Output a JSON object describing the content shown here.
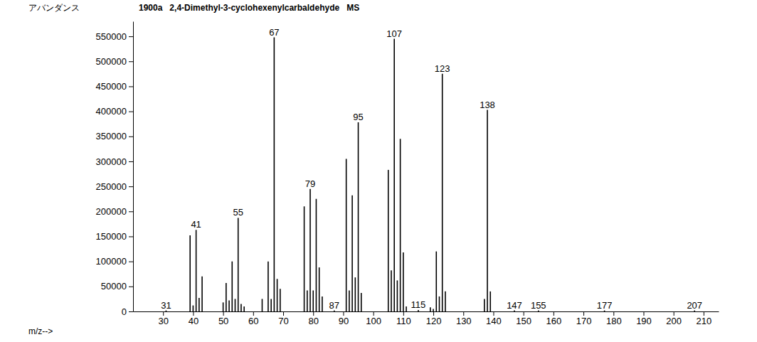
{
  "chart_data": {
    "type": "bar",
    "title": "1900a   2,4-Dimethyl-3-cyclohexenylcarbaldehyde   MS",
    "y_label": "アバンダンス",
    "x_label": "m/z-->",
    "x": [
      31,
      39,
      40,
      41,
      42,
      43,
      50,
      51,
      52,
      53,
      54,
      55,
      56,
      57,
      63,
      65,
      66,
      67,
      68,
      69,
      77,
      78,
      79,
      80,
      81,
      82,
      83,
      87,
      91,
      92,
      93,
      94,
      95,
      96,
      105,
      106,
      107,
      108,
      109,
      110,
      111,
      115,
      119,
      120,
      121,
      122,
      123,
      124,
      137,
      138,
      139,
      147,
      155,
      177,
      207
    ],
    "values": [
      2000,
      152000,
      12000,
      163000,
      27000,
      70000,
      18000,
      57000,
      22000,
      100000,
      25000,
      187000,
      15000,
      10000,
      25000,
      100000,
      25000,
      548000,
      65000,
      45000,
      210000,
      42000,
      245000,
      42000,
      225000,
      88000,
      30000,
      2000,
      305000,
      42000,
      232000,
      68000,
      378000,
      37000,
      283000,
      82000,
      545000,
      62000,
      345000,
      118000,
      10000,
      3000,
      8000,
      5000,
      120000,
      30000,
      475000,
      40000,
      25000,
      403000,
      40000,
      2000,
      2000,
      2000,
      2000
    ],
    "peak_labels": [
      31,
      41,
      55,
      67,
      79,
      87,
      95,
      107,
      115,
      123,
      138,
      147,
      155,
      177,
      207
    ],
    "color": "#000000",
    "xlim": [
      20,
      215
    ],
    "ylim": [
      0,
      580000
    ],
    "xticks": [
      30,
      40,
      50,
      60,
      70,
      80,
      90,
      100,
      110,
      120,
      130,
      140,
      150,
      160,
      170,
      180,
      190,
      200,
      210
    ],
    "yticks": [
      0,
      50000,
      100000,
      150000,
      200000,
      250000,
      300000,
      350000,
      400000,
      450000,
      500000,
      550000
    ]
  }
}
